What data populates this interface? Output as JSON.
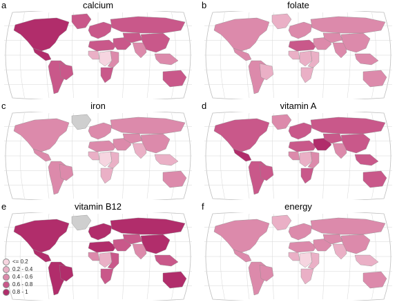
{
  "colors": {
    "ocean": "#ffffff",
    "graticule": "#d6d6d6",
    "nodata": "#cfcfcf",
    "bins": [
      "#f6d5e0",
      "#eab0c6",
      "#dc8aab",
      "#c9588a",
      "#b12d6b"
    ]
  },
  "legend": {
    "items": [
      {
        "label": "<= 0.2",
        "bin": 0
      },
      {
        "label": "0.2 - 0.4",
        "bin": 1
      },
      {
        "label": "0.4 - 0.6",
        "bin": 2
      },
      {
        "label": "0.6 - 0.8",
        "bin": 3
      },
      {
        "label": "0.8 - 1",
        "bin": 4
      }
    ]
  },
  "panels": [
    {
      "letter": "a",
      "title": "calcium",
      "regions": {
        "namerica": 4,
        "greenland": 3,
        "samerica": 3,
        "brazil": 3,
        "europe": 3,
        "africa_n": 3,
        "africa_w": 1,
        "africa_c": 0,
        "africa_e": 2,
        "africa_s": 3,
        "mideast": 3,
        "russia": 3,
        "centralasia": 3,
        "southasia": 2,
        "china": 3,
        "seasia": 2,
        "australia": 3,
        "mexico": 4
      }
    },
    {
      "letter": "b",
      "title": "folate",
      "regions": {
        "namerica": 2,
        "greenland": 1,
        "samerica": 2,
        "brazil": 1,
        "europe": 2,
        "africa_n": 3,
        "africa_w": 1,
        "africa_c": 1,
        "africa_e": 1,
        "africa_s": 1,
        "mideast": 2,
        "russia": 2,
        "centralasia": 2,
        "southasia": 2,
        "china": 2,
        "seasia": 2,
        "australia": 2,
        "mexico": 2
      }
    },
    {
      "letter": "c",
      "title": "iron",
      "regions": {
        "namerica": 2,
        "greenland": -1,
        "samerica": 2,
        "brazil": 2,
        "europe": 2,
        "africa_n": 2,
        "africa_w": 1,
        "africa_c": 0,
        "africa_e": 1,
        "africa_s": 1,
        "mideast": 2,
        "russia": 2,
        "centralasia": 2,
        "southasia": 1,
        "china": 2,
        "seasia": 1,
        "australia": 2,
        "mexico": 2
      }
    },
    {
      "letter": "d",
      "title": "vitamin A",
      "regions": {
        "namerica": 3,
        "greenland": 2,
        "samerica": 3,
        "brazil": 3,
        "europe": 3,
        "africa_n": 3,
        "africa_w": 2,
        "africa_c": 1,
        "africa_e": 2,
        "africa_s": 3,
        "mideast": 4,
        "russia": 3,
        "centralasia": 3,
        "southasia": 2,
        "china": 3,
        "seasia": 3,
        "australia": 3,
        "mexico": 4
      }
    },
    {
      "letter": "e",
      "title": "vitamin B12",
      "regions": {
        "namerica": 4,
        "greenland": -1,
        "samerica": 4,
        "brazil": 4,
        "europe": 4,
        "africa_n": 4,
        "africa_w": 2,
        "africa_c": 1,
        "africa_e": 3,
        "africa_s": 3,
        "mideast": 3,
        "russia": 4,
        "centralasia": 3,
        "southasia": 2,
        "china": 4,
        "seasia": 3,
        "australia": 4,
        "mexico": 4
      },
      "show_legend": true
    },
    {
      "letter": "f",
      "title": "energy",
      "regions": {
        "namerica": 2,
        "greenland": 1,
        "samerica": 2,
        "brazil": 2,
        "europe": 2,
        "africa_n": 2,
        "africa_w": 1,
        "africa_c": 0,
        "africa_e": 1,
        "africa_s": 1,
        "mideast": 2,
        "russia": 2,
        "centralasia": 2,
        "southasia": 1,
        "china": 2,
        "seasia": 1,
        "australia": 2,
        "mexico": 2
      }
    }
  ]
}
